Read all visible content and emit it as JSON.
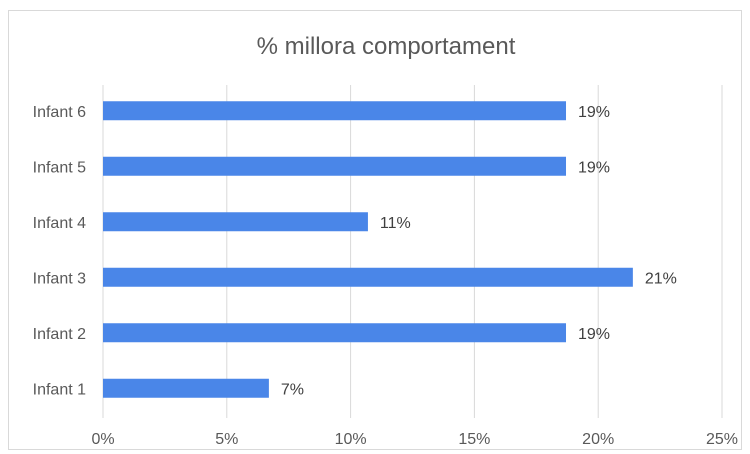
{
  "chart_data": {
    "type": "bar",
    "orientation": "horizontal",
    "title": "% millora comportament",
    "categories": [
      "Infant 1",
      "Infant 2",
      "Infant 3",
      "Infant 4",
      "Infant 5",
      "Infant 6"
    ],
    "values": [
      6.7,
      18.7,
      21.4,
      10.7,
      18.7,
      18.7
    ],
    "data_labels": [
      "7%",
      "19%",
      "21%",
      "11%",
      "19%",
      "19%"
    ],
    "xlim": [
      0,
      25
    ],
    "x_ticks": [
      0,
      5,
      10,
      15,
      20,
      25
    ],
    "x_tick_labels": [
      "0%",
      "5%",
      "10%",
      "15%",
      "20%",
      "25%"
    ],
    "grid": true,
    "legend": "none",
    "bar_color": "#4a86e8",
    "grid_color": "#d9d9d9"
  }
}
